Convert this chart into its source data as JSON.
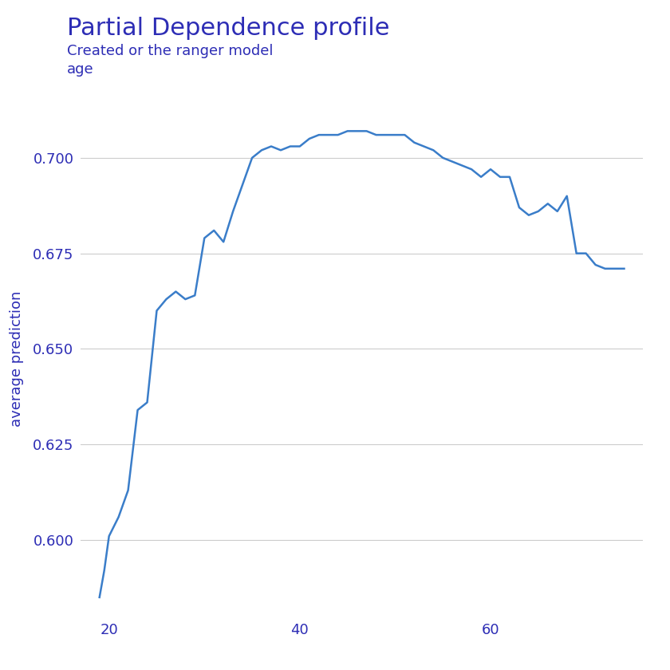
{
  "title": "Partial Dependence profile",
  "subtitle1": "Created or the ranger model",
  "subtitle2": "age",
  "ylabel": "average prediction",
  "xlabel": "",
  "line_color": "#3a7dc9",
  "title_color": "#2d2db5",
  "subtitle_color": "#2d2db5",
  "ylabel_color": "#2d2db5",
  "tick_color": "#2d2db5",
  "grid_color": "#cccccc",
  "background_color": "#ffffff",
  "x": [
    19,
    19.5,
    20,
    21,
    22,
    23,
    24,
    25,
    26,
    27,
    28,
    29,
    30,
    31,
    32,
    33,
    34,
    35,
    36,
    37,
    38,
    39,
    40,
    41,
    42,
    43,
    44,
    45,
    46,
    47,
    48,
    49,
    50,
    51,
    52,
    53,
    54,
    55,
    56,
    57,
    58,
    59,
    60,
    61,
    62,
    63,
    64,
    65,
    66,
    67,
    68,
    69,
    70,
    71,
    72,
    73,
    74
  ],
  "y": [
    0.585,
    0.592,
    0.601,
    0.606,
    0.613,
    0.634,
    0.636,
    0.66,
    0.663,
    0.665,
    0.663,
    0.664,
    0.679,
    0.681,
    0.678,
    0.686,
    0.693,
    0.7,
    0.702,
    0.703,
    0.702,
    0.703,
    0.703,
    0.705,
    0.706,
    0.706,
    0.706,
    0.707,
    0.707,
    0.707,
    0.706,
    0.706,
    0.706,
    0.706,
    0.704,
    0.703,
    0.702,
    0.7,
    0.699,
    0.698,
    0.697,
    0.695,
    0.697,
    0.695,
    0.695,
    0.687,
    0.685,
    0.686,
    0.688,
    0.686,
    0.69,
    0.675,
    0.675,
    0.672,
    0.671,
    0.671,
    0.671
  ],
  "ylim": [
    0.58,
    0.715
  ],
  "xlim": [
    17,
    76
  ],
  "yticks": [
    0.6,
    0.625,
    0.65,
    0.675,
    0.7
  ],
  "xticks": [
    20,
    40,
    60
  ],
  "line_width": 1.8,
  "title_fontsize": 22,
  "subtitle_fontsize": 13,
  "tick_fontsize": 13,
  "ylabel_fontsize": 13
}
